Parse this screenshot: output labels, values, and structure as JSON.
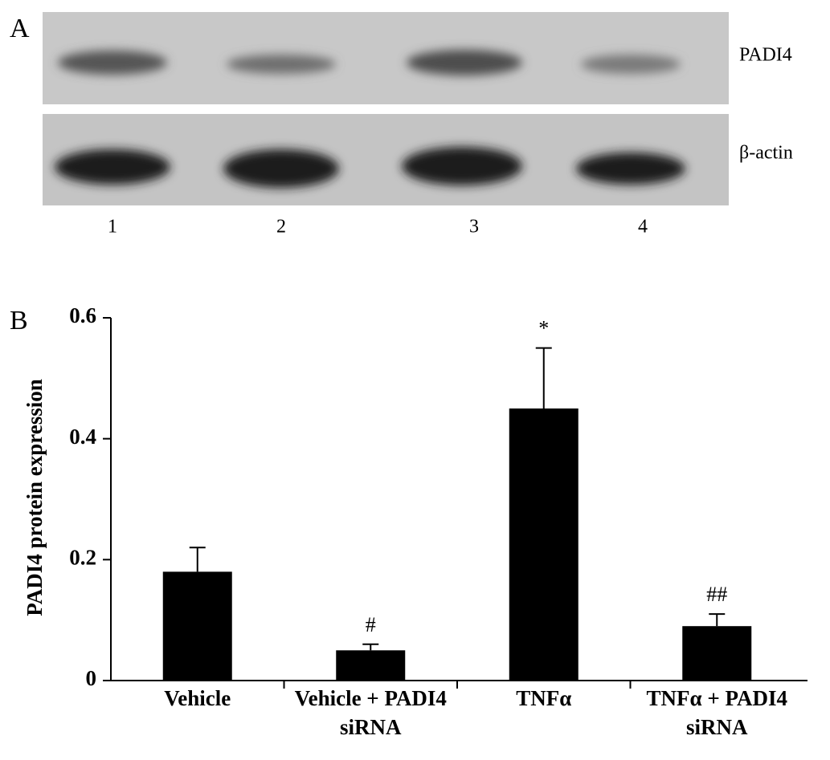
{
  "panel_a": {
    "label": "A",
    "rows": [
      "PADI4",
      "β-actin"
    ],
    "lanes": [
      "1",
      "2",
      "3",
      "4"
    ]
  },
  "chart_data": {
    "type": "bar",
    "panel_label": "B",
    "y_label": "PADI4 protein expression",
    "categories": [
      "Vehicle",
      "Vehicle + PADI4 siRNA",
      "TNFα",
      "TNFα + PADI4 siRNA"
    ],
    "values": [
      0.18,
      0.05,
      0.45,
      0.09
    ],
    "errors": [
      0.04,
      0.01,
      0.1,
      0.02
    ],
    "value_annotations": [
      null,
      "#",
      "*",
      "##"
    ],
    "color": "#000000",
    "ylim": [
      0,
      0.6
    ],
    "yticks": [
      0,
      0.2,
      0.4,
      0.6
    ]
  }
}
